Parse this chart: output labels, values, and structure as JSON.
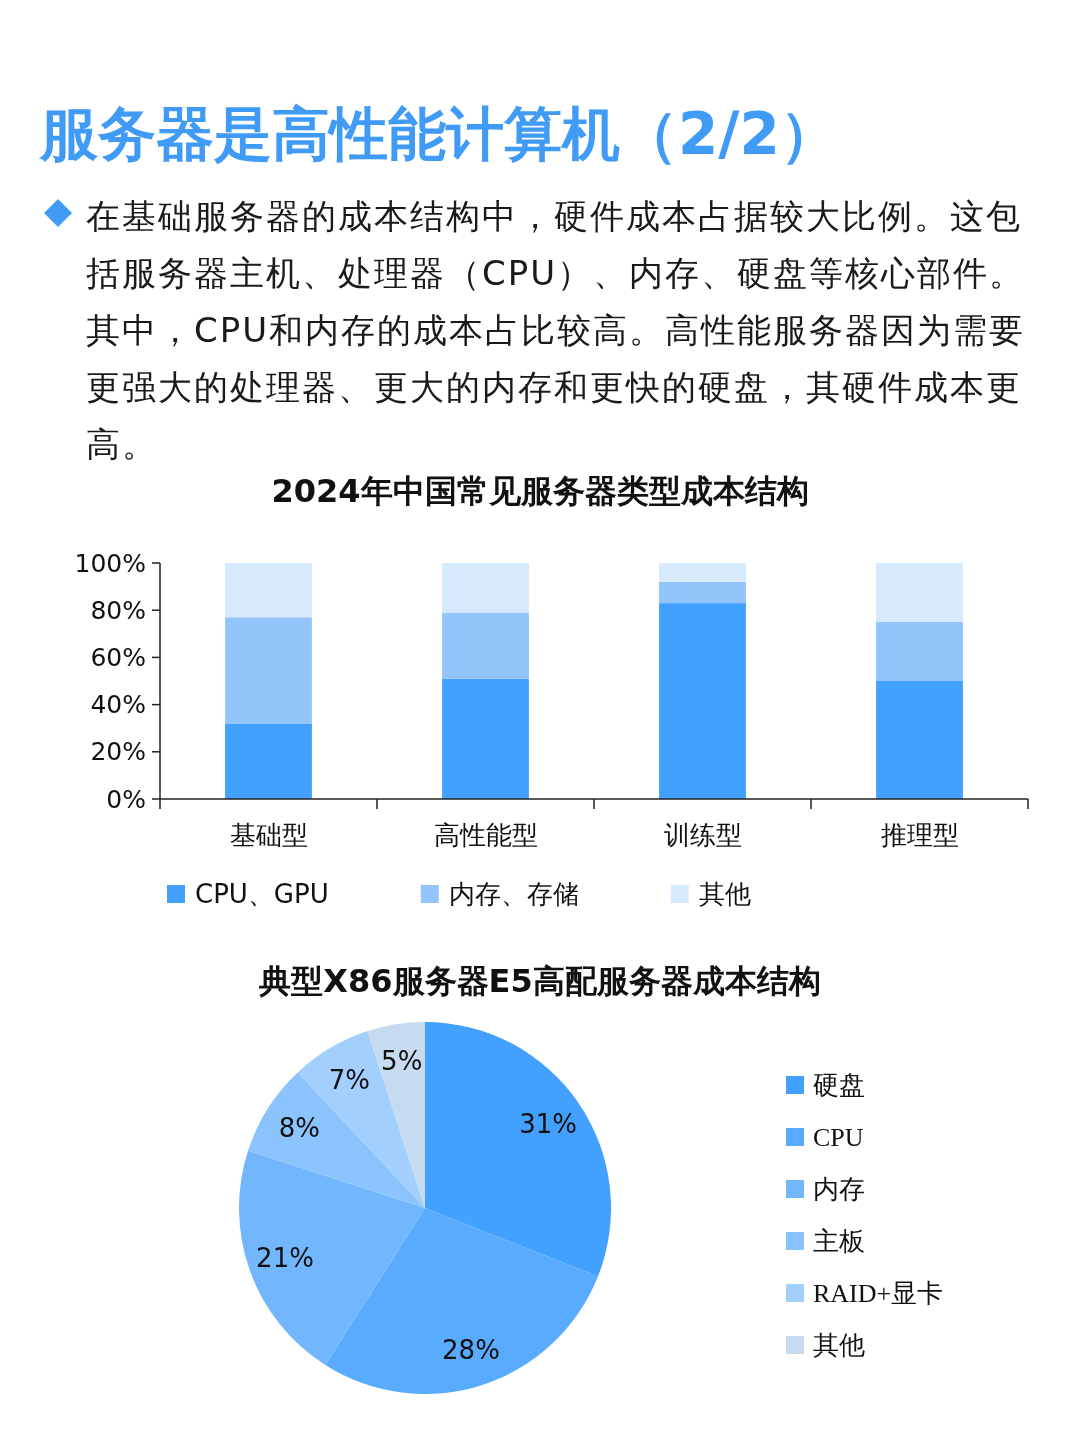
{
  "chart_data": [
    {
      "type": "other",
      "title": "服务器是高性能计算机（2/2）",
      "annotations": [
        "在基础服务器的成本结构中，硬件成本占据较大比例。这包括服务器主机、处理器（CPU）、内存、硬盘等核心部件。其中，CPU和内存的成本占比较高。高性能服务器因为需要更强大的处理器、更大的内存和更快的硬盘，其硬件成本更高。"
      ]
    },
    {
      "type": "bar",
      "title": "2024年中国常见服务器类型成本结构",
      "categories": [
        "基础型",
        "高性能型",
        "训练型",
        "推理型"
      ],
      "stacked": true,
      "series": [
        {
          "name": "CPU、GPU",
          "color": "#42a0ff",
          "values": [
            32,
            51,
            83,
            50
          ]
        },
        {
          "name": "内存、存储",
          "color": "#93c5fd",
          "values": [
            45,
            28,
            9,
            25
          ]
        },
        {
          "name": "其他",
          "color": "#d6e9fd",
          "values": [
            23,
            21,
            8,
            25
          ]
        }
      ],
      "ylim": [
        0,
        100
      ],
      "yticks": [
        {
          "value": 0,
          "label": "0%"
        },
        {
          "value": 20,
          "label": "20%"
        },
        {
          "value": 40,
          "label": "40%"
        },
        {
          "value": 60,
          "label": "60%"
        },
        {
          "value": 80,
          "label": "80%"
        },
        {
          "value": 100,
          "label": "100%"
        }
      ],
      "legend": "bottom"
    },
    {
      "type": "pie",
      "title": "典型X86服务器E5高配服务器成本结构",
      "categories": [
        "硬盘",
        "CPU",
        "内存",
        "主板",
        "RAID+显卡",
        "其他"
      ],
      "values": [
        31,
        28,
        21,
        8,
        7,
        5
      ],
      "colors": [
        "#42a0fe",
        "#58abfe",
        "#72b7fd",
        "#8ac3fd",
        "#a2cffd",
        "#c6daf0"
      ],
      "value_labels": [
        "31%",
        "28%",
        "21%",
        "8%",
        "7%",
        "5%"
      ],
      "legend": "right"
    }
  ]
}
